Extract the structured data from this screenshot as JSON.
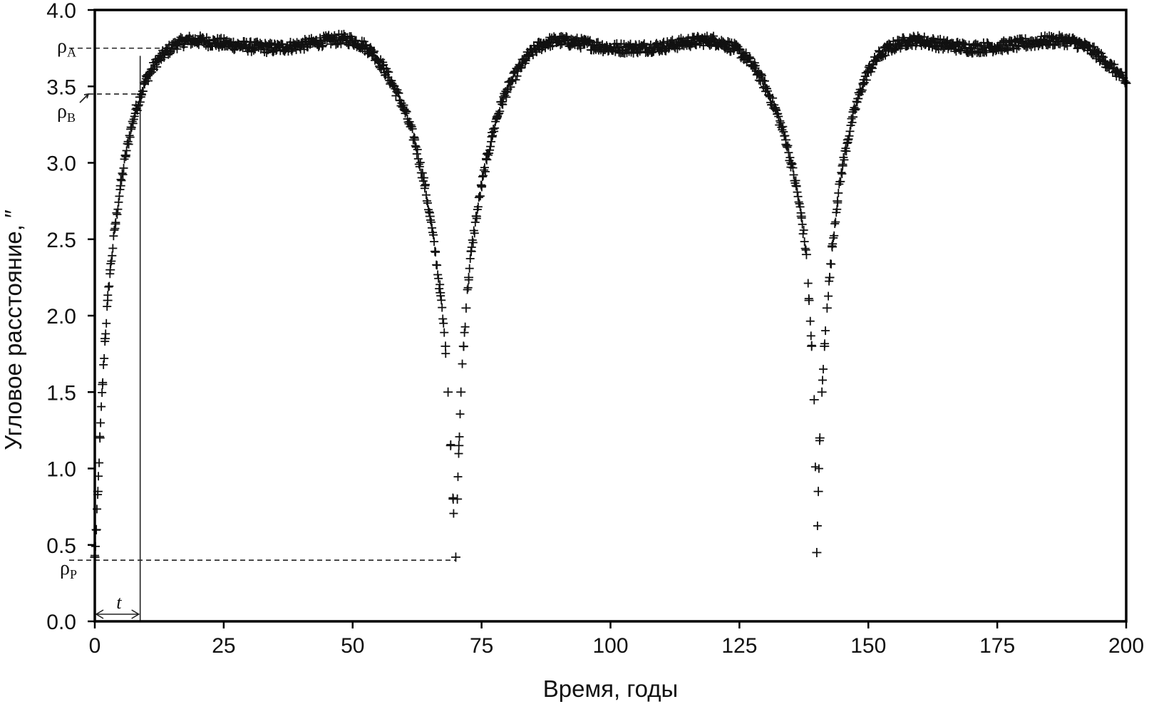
{
  "chart_data": {
    "type": "scatter",
    "xlabel": "Время, годы",
    "ylabel": "Угловое расстояние, ″",
    "xlim": [
      0,
      200
    ],
    "ylim": [
      0.0,
      4.0
    ],
    "x_ticks": [
      "0",
      "25",
      "50",
      "75",
      "100",
      "125",
      "150",
      "175",
      "200"
    ],
    "y_ticks": [
      "0.0",
      "0.5",
      "1.0",
      "1.5",
      "2.0",
      "2.5",
      "3.0",
      "3.5",
      "4.0"
    ],
    "grid": false,
    "legend": "none",
    "marker": "plus",
    "marker_color": "#111111",
    "period_years": 70,
    "series": [
      {
        "x": [
          0.0,
          0.3,
          0.6,
          1.0,
          1.5,
          2.0,
          2.5,
          3.0,
          4.0,
          5.0,
          6.0,
          7.0,
          8.0,
          9.0,
          10.0,
          12.0,
          14.0,
          16.0,
          18.0,
          20.0,
          25.0,
          30.0,
          35.0,
          40.0,
          45.0,
          48.0,
          50.0,
          52.0,
          54.0,
          56.0,
          58.0,
          60.0,
          62.0,
          64.0,
          65.0,
          66.0,
          67.0,
          68.0,
          68.5,
          69.0,
          69.5,
          70.0,
          70.3,
          70.6,
          71.0,
          71.5,
          72.0,
          72.5,
          73.0,
          74.0,
          75.0,
          76.0,
          77.0,
          78.0,
          79.0,
          80.0,
          82.0,
          84.0,
          86.0,
          88.0,
          90.0,
          95.0,
          100.0,
          105.0,
          110.0,
          115.0,
          118.0,
          120.0,
          122.0,
          124.0,
          126.0,
          128.0,
          130.0,
          132.0,
          134.0,
          135.0,
          136.0,
          137.0,
          138.0,
          138.5,
          139.0,
          139.5,
          140.0,
          140.3,
          140.6,
          141.0,
          141.5,
          142.0,
          142.5,
          143.0,
          144.0,
          145.0,
          146.0,
          147.0,
          148.0,
          149.0,
          150.0,
          152.0,
          154.0,
          156.0,
          158.0,
          160.0,
          165.0,
          170.0,
          175.0,
          180.0,
          185.0,
          188.0,
          190.0,
          192.0,
          194.0,
          196.0,
          198.0,
          200.0
        ],
        "values": [
          0.42,
          0.6,
          0.85,
          1.2,
          1.55,
          1.85,
          2.1,
          2.3,
          2.6,
          2.85,
          3.05,
          3.22,
          3.35,
          3.45,
          3.55,
          3.66,
          3.73,
          3.78,
          3.8,
          3.8,
          3.78,
          3.76,
          3.75,
          3.77,
          3.8,
          3.81,
          3.8,
          3.77,
          3.72,
          3.62,
          3.5,
          3.35,
          3.15,
          2.85,
          2.65,
          2.42,
          2.15,
          1.8,
          1.5,
          1.15,
          0.8,
          0.42,
          0.8,
          1.15,
          1.5,
          1.8,
          2.05,
          2.25,
          2.42,
          2.65,
          2.85,
          3.02,
          3.17,
          3.3,
          3.4,
          3.48,
          3.6,
          3.7,
          3.76,
          3.79,
          3.8,
          3.78,
          3.75,
          3.75,
          3.76,
          3.79,
          3.8,
          3.8,
          3.78,
          3.75,
          3.7,
          3.62,
          3.5,
          3.35,
          3.15,
          3.0,
          2.85,
          2.65,
          2.4,
          2.1,
          1.8,
          1.45,
          0.45,
          0.85,
          1.2,
          1.5,
          1.8,
          2.05,
          2.25,
          2.45,
          2.75,
          2.98,
          3.15,
          3.3,
          3.42,
          3.52,
          3.6,
          3.7,
          3.75,
          3.78,
          3.8,
          3.8,
          3.77,
          3.75,
          3.76,
          3.78,
          3.8,
          3.8,
          3.79,
          3.76,
          3.72,
          3.66,
          3.6,
          3.52
        ]
      }
    ],
    "annotations": {
      "rho_a": {
        "base": "ρ",
        "sub": "A",
        "value": 3.75
      },
      "rho_b": {
        "base": "ρ",
        "sub": "B",
        "value": 3.45
      },
      "rho_p": {
        "base": "ρ",
        "sub": "P",
        "value": 0.4,
        "x_end": 70
      },
      "t_marker": {
        "label": "t",
        "x_end": 8.8
      }
    }
  }
}
